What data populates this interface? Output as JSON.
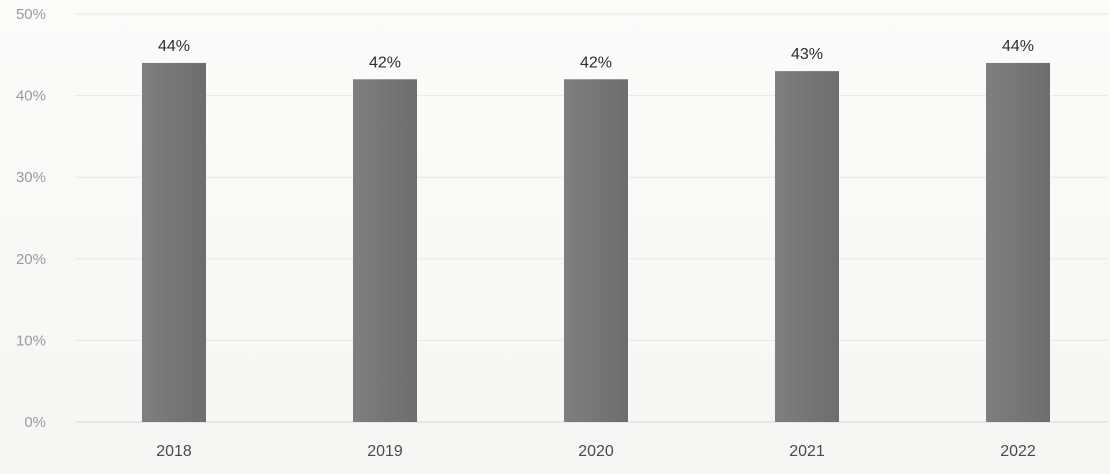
{
  "chart_data": {
    "type": "bar",
    "categories": [
      "2018",
      "2019",
      "2020",
      "2021",
      "2022"
    ],
    "values": [
      44,
      42,
      42,
      43,
      44
    ],
    "data_labels": [
      "44%",
      "42%",
      "42%",
      "43%",
      "44%"
    ],
    "ylim": [
      0,
      50
    ],
    "y_ticks": [
      0,
      10,
      20,
      30,
      40,
      50
    ],
    "y_tick_labels": [
      "0%",
      "10%",
      "20%",
      "30%",
      "40%",
      "50%"
    ],
    "grid": true,
    "legend": "none",
    "colors": {
      "bar": "#7f7f7f",
      "bar_dark": "#6d6d6d",
      "grid": "#e7e7e4"
    }
  }
}
